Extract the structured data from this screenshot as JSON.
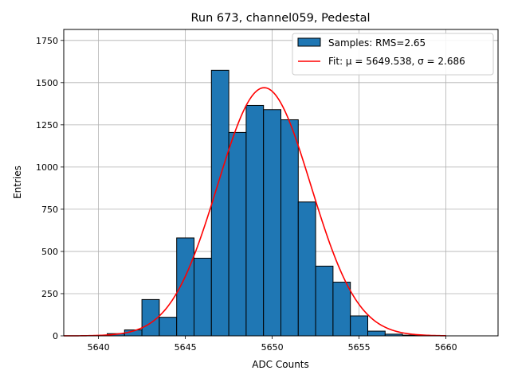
{
  "chart_data": {
    "type": "bar",
    "title": "Run 673, channel059, Pedestal",
    "xlabel": "ADC Counts",
    "ylabel": "Entries",
    "xlim": [
      5638,
      5663
    ],
    "ylim": [
      0,
      1815
    ],
    "xticks": [
      5640,
      5645,
      5650,
      5655,
      5660
    ],
    "yticks": [
      0,
      250,
      500,
      750,
      1000,
      1250,
      1500,
      1750
    ],
    "grid": true,
    "legend_position": "top-right",
    "bin_width": 1,
    "histogram": {
      "name": "Samples: RMS=2.65",
      "color": "#1f77b4",
      "bins": [
        {
          "x": 5641,
          "count": 13
        },
        {
          "x": 5642,
          "count": 35
        },
        {
          "x": 5643,
          "count": 215
        },
        {
          "x": 5644,
          "count": 110
        },
        {
          "x": 5645,
          "count": 580
        },
        {
          "x": 5646,
          "count": 460
        },
        {
          "x": 5647,
          "count": 1573
        },
        {
          "x": 5648,
          "count": 1205
        },
        {
          "x": 5649,
          "count": 1365
        },
        {
          "x": 5650,
          "count": 1340
        },
        {
          "x": 5651,
          "count": 1280
        },
        {
          "x": 5652,
          "count": 793
        },
        {
          "x": 5653,
          "count": 413
        },
        {
          "x": 5654,
          "count": 318
        },
        {
          "x": 5655,
          "count": 118
        },
        {
          "x": 5656,
          "count": 28
        },
        {
          "x": 5657,
          "count": 10
        },
        {
          "x": 5658,
          "count": 4
        }
      ]
    },
    "fit": {
      "name": "Fit: μ = 5649.538, σ = 2.686",
      "color": "#ff0000",
      "mu": 5649.538,
      "sigma": 2.686,
      "amplitude": 1470,
      "x_range": [
        5638,
        5660
      ]
    }
  }
}
